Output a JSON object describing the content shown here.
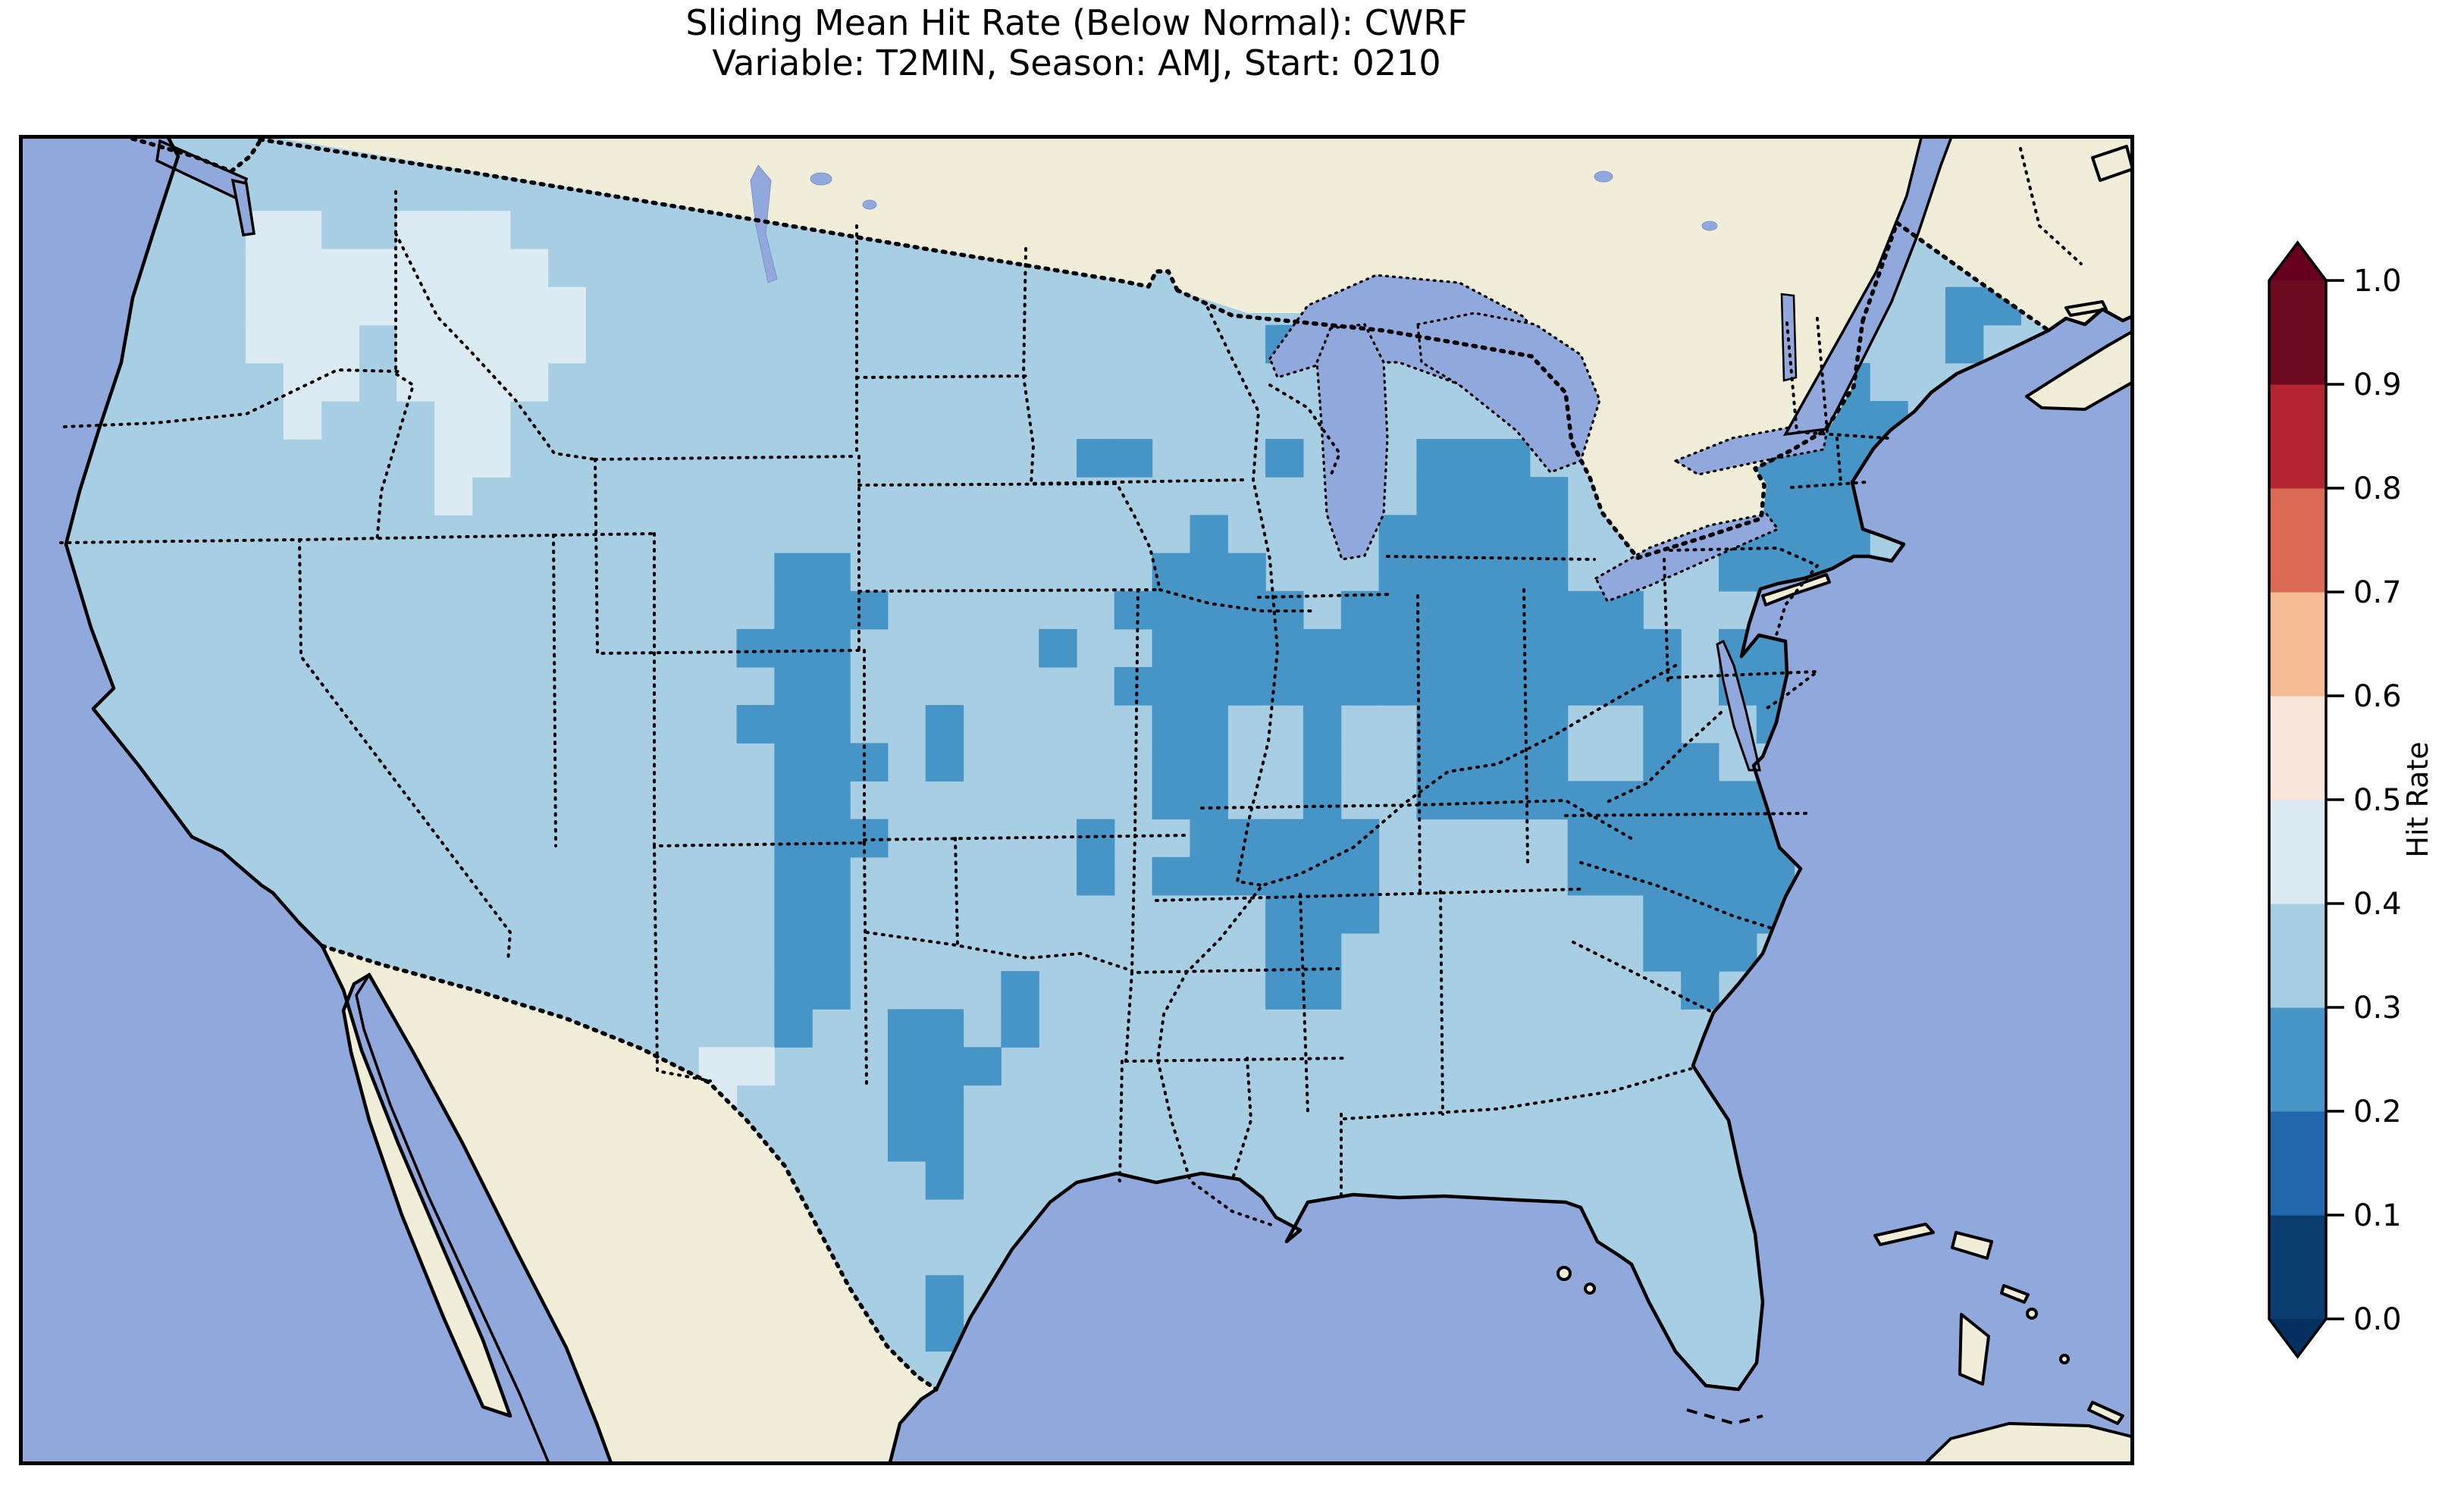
{
  "title": {
    "line1": "Sliding Mean Hit Rate (Below Normal): CWRF",
    "line2": "Variable: T2MIN, Season: AMJ, Start: 0210"
  },
  "chart_data": {
    "type": "heatmap",
    "subtype": "geographic-choropleth (gridded forecast verification map, CONUS)",
    "title": "Sliding Mean Hit Rate (Below Normal): CWRF",
    "subtitle": "Variable: T2MIN, Season: AMJ, Start: 0210",
    "model": "CWRF",
    "variable": "T2MIN",
    "season": "AMJ",
    "start": "0210",
    "metric": "Hit Rate (Below Normal)",
    "legend_position": "right",
    "colorbar": {
      "label": "Hit Rate",
      "orientation": "vertical",
      "extend": "both",
      "levels": [
        0.0,
        0.1,
        0.2,
        0.3,
        0.4,
        0.5,
        0.6,
        0.7,
        0.8,
        0.9,
        1.0
      ],
      "tick_labels": [
        "0.0",
        "0.1",
        "0.2",
        "0.3",
        "0.4",
        "0.5",
        "0.6",
        "0.7",
        "0.8",
        "0.9",
        "1.0"
      ],
      "segment_colors_low_to_high": [
        "#0b3d70",
        "#2267ac",
        "#4695c6",
        "#a8cee4",
        "#dcebf3",
        "#f9e5d9",
        "#f6bc95",
        "#da6a53",
        "#b42431",
        "#6e0a20"
      ],
      "extend_low_color": "#053061",
      "extend_high_color": "#67001f"
    },
    "map_colors": {
      "ocean_and_lakes": "#90a8dc",
      "non_us_land": "#f0eed9",
      "coastline": "#000000",
      "state_borders": "#000000 dotted",
      "national_borders": "#000000 dashed-dotted"
    },
    "field_summary": {
      "dominant_bin": "0.3-0.4 (light blue) over most of the CONUS",
      "bin_0.2_0.3": "Ohio Valley / lower Michigan / Kentucky, upstate New York and interior New England, southern Virginia to coastal North Carolina band, Iowa-Missouri, Colorado-Kansas border into northern New Mexico, central-west Texas, Tennessee-Alabama lobe, small cells in Minnesota, Nebraska, Oklahoma and Maine-New Brunswick border",
      "bin_0.4_0.5": "eastern Washington, central Idaho / western Montana, far-west Texas near Big Bend, a few coastal Maine cells",
      "outside_us": "masked cream land (Canada, Mexico, Bahamas, Cuba); ocean and Great Lakes periwinkle"
    },
    "grid": {
      "cols": 56,
      "rows": 35,
      "cells_bin_0.2_0.3": [
        [
          46,
          5
        ],
        [
          47,
          5
        ],
        [
          45,
          6
        ],
        [
          46,
          6
        ],
        [
          47,
          6
        ],
        [
          48,
          6
        ],
        [
          45,
          7
        ],
        [
          46,
          7
        ],
        [
          47,
          7
        ],
        [
          48,
          7
        ],
        [
          49,
          7
        ],
        [
          45,
          8
        ],
        [
          46,
          8
        ],
        [
          47,
          8
        ],
        [
          48,
          8
        ],
        [
          49,
          8
        ],
        [
          45,
          9
        ],
        [
          46,
          9
        ],
        [
          47,
          9
        ],
        [
          48,
          9
        ],
        [
          45,
          10
        ],
        [
          46,
          10
        ],
        [
          47,
          10
        ],
        [
          48,
          10
        ],
        [
          45,
          11
        ],
        [
          46,
          11
        ],
        [
          47,
          11
        ],
        [
          48,
          11
        ],
        [
          46,
          12
        ],
        [
          47,
          12
        ],
        [
          48,
          12
        ],
        [
          45,
          13
        ],
        [
          46,
          13
        ],
        [
          47,
          13
        ],
        [
          45,
          14
        ],
        [
          46,
          14
        ],
        [
          47,
          14
        ],
        [
          46,
          15
        ],
        [
          51,
          4
        ],
        [
          52,
          4
        ],
        [
          51,
          5
        ],
        [
          33,
          5
        ],
        [
          28,
          8
        ],
        [
          29,
          8
        ],
        [
          33,
          8
        ],
        [
          37,
          8
        ],
        [
          38,
          8
        ],
        [
          39,
          8
        ],
        [
          37,
          9
        ],
        [
          38,
          9
        ],
        [
          39,
          9
        ],
        [
          40,
          9
        ],
        [
          36,
          10
        ],
        [
          37,
          10
        ],
        [
          38,
          10
        ],
        [
          39,
          10
        ],
        [
          40,
          10
        ],
        [
          36,
          11
        ],
        [
          37,
          11
        ],
        [
          38,
          11
        ],
        [
          39,
          11
        ],
        [
          40,
          11
        ],
        [
          35,
          12
        ],
        [
          36,
          12
        ],
        [
          37,
          12
        ],
        [
          38,
          12
        ],
        [
          39,
          12
        ],
        [
          40,
          12
        ],
        [
          41,
          12
        ],
        [
          42,
          12
        ],
        [
          34,
          13
        ],
        [
          35,
          13
        ],
        [
          36,
          13
        ],
        [
          37,
          13
        ],
        [
          38,
          13
        ],
        [
          39,
          13
        ],
        [
          40,
          13
        ],
        [
          41,
          13
        ],
        [
          42,
          13
        ],
        [
          43,
          13
        ],
        [
          34,
          14
        ],
        [
          35,
          14
        ],
        [
          36,
          14
        ],
        [
          37,
          14
        ],
        [
          38,
          14
        ],
        [
          39,
          14
        ],
        [
          40,
          14
        ],
        [
          41,
          14
        ],
        [
          42,
          14
        ],
        [
          43,
          14
        ],
        [
          34,
          15
        ],
        [
          37,
          15
        ],
        [
          38,
          15
        ],
        [
          39,
          15
        ],
        [
          40,
          15
        ],
        [
          43,
          15
        ],
        [
          34,
          16
        ],
        [
          37,
          16
        ],
        [
          38,
          16
        ],
        [
          39,
          16
        ],
        [
          40,
          16
        ],
        [
          43,
          16
        ],
        [
          44,
          16
        ],
        [
          34,
          17
        ],
        [
          37,
          17
        ],
        [
          38,
          17
        ],
        [
          39,
          17
        ],
        [
          40,
          17
        ],
        [
          41,
          17
        ],
        [
          42,
          17
        ],
        [
          43,
          17
        ],
        [
          44,
          17
        ],
        [
          45,
          17
        ],
        [
          46,
          17
        ],
        [
          47,
          17
        ],
        [
          31,
          18
        ],
        [
          32,
          18
        ],
        [
          33,
          18
        ],
        [
          34,
          18
        ],
        [
          35,
          18
        ],
        [
          41,
          18
        ],
        [
          42,
          18
        ],
        [
          43,
          18
        ],
        [
          44,
          18
        ],
        [
          45,
          18
        ],
        [
          46,
          18
        ],
        [
          47,
          18
        ],
        [
          30,
          19
        ],
        [
          31,
          19
        ],
        [
          32,
          19
        ],
        [
          33,
          19
        ],
        [
          34,
          19
        ],
        [
          35,
          19
        ],
        [
          41,
          19
        ],
        [
          42,
          19
        ],
        [
          43,
          19
        ],
        [
          44,
          19
        ],
        [
          45,
          19
        ],
        [
          46,
          19
        ],
        [
          33,
          20
        ],
        [
          34,
          20
        ],
        [
          35,
          20
        ],
        [
          43,
          20
        ],
        [
          44,
          20
        ],
        [
          45,
          20
        ],
        [
          46,
          20
        ],
        [
          33,
          21
        ],
        [
          34,
          21
        ],
        [
          43,
          21
        ],
        [
          44,
          21
        ],
        [
          45,
          21
        ],
        [
          33,
          22
        ],
        [
          34,
          22
        ],
        [
          44,
          22
        ],
        [
          31,
          10
        ],
        [
          30,
          11
        ],
        [
          31,
          11
        ],
        [
          32,
          11
        ],
        [
          29,
          12
        ],
        [
          30,
          12
        ],
        [
          31,
          12
        ],
        [
          32,
          12
        ],
        [
          33,
          12
        ],
        [
          30,
          13
        ],
        [
          31,
          13
        ],
        [
          32,
          13
        ],
        [
          33,
          13
        ],
        [
          27,
          13
        ],
        [
          29,
          14
        ],
        [
          30,
          14
        ],
        [
          31,
          14
        ],
        [
          32,
          14
        ],
        [
          33,
          14
        ],
        [
          30,
          15
        ],
        [
          31,
          15
        ],
        [
          30,
          16
        ],
        [
          31,
          16
        ],
        [
          30,
          17
        ],
        [
          31,
          17
        ],
        [
          28,
          18
        ],
        [
          28,
          19
        ],
        [
          26,
          22
        ],
        [
          26,
          23
        ],
        [
          20,
          11
        ],
        [
          21,
          11
        ],
        [
          20,
          12
        ],
        [
          21,
          12
        ],
        [
          22,
          12
        ],
        [
          19,
          13
        ],
        [
          20,
          13
        ],
        [
          21,
          13
        ],
        [
          20,
          14
        ],
        [
          21,
          14
        ],
        [
          19,
          15
        ],
        [
          20,
          15
        ],
        [
          21,
          15
        ],
        [
          24,
          15
        ],
        [
          24,
          16
        ],
        [
          20,
          16
        ],
        [
          21,
          16
        ],
        [
          22,
          16
        ],
        [
          20,
          17
        ],
        [
          21,
          17
        ],
        [
          20,
          18
        ],
        [
          21,
          18
        ],
        [
          22,
          18
        ],
        [
          20,
          19
        ],
        [
          21,
          19
        ],
        [
          20,
          20
        ],
        [
          21,
          20
        ],
        [
          20,
          21
        ],
        [
          21,
          21
        ],
        [
          20,
          22
        ],
        [
          21,
          22
        ],
        [
          20,
          23
        ],
        [
          23,
          23
        ],
        [
          24,
          23
        ],
        [
          23,
          24
        ],
        [
          24,
          24
        ],
        [
          25,
          24
        ],
        [
          23,
          25
        ],
        [
          24,
          25
        ],
        [
          23,
          26
        ],
        [
          24,
          26
        ],
        [
          24,
          27
        ],
        [
          24,
          30
        ],
        [
          24,
          31
        ]
      ],
      "cells_bin_0.4_0.5": [
        [
          6,
          2
        ],
        [
          7,
          2
        ],
        [
          6,
          3
        ],
        [
          7,
          3
        ],
        [
          8,
          3
        ],
        [
          6,
          4
        ],
        [
          7,
          4
        ],
        [
          8,
          4
        ],
        [
          6,
          5
        ],
        [
          7,
          5
        ],
        [
          8,
          5
        ],
        [
          7,
          6
        ],
        [
          8,
          6
        ],
        [
          7,
          7
        ],
        [
          10,
          2
        ],
        [
          11,
          2
        ],
        [
          12,
          2
        ],
        [
          9,
          3
        ],
        [
          10,
          3
        ],
        [
          11,
          3
        ],
        [
          12,
          3
        ],
        [
          13,
          3
        ],
        [
          9,
          4
        ],
        [
          10,
          4
        ],
        [
          11,
          4
        ],
        [
          12,
          4
        ],
        [
          13,
          4
        ],
        [
          14,
          4
        ],
        [
          10,
          5
        ],
        [
          11,
          5
        ],
        [
          12,
          5
        ],
        [
          13,
          5
        ],
        [
          14,
          5
        ],
        [
          10,
          6
        ],
        [
          11,
          6
        ],
        [
          12,
          6
        ],
        [
          13,
          6
        ],
        [
          11,
          7
        ],
        [
          12,
          7
        ],
        [
          11,
          8
        ],
        [
          12,
          8
        ],
        [
          11,
          9
        ],
        [
          18,
          24
        ],
        [
          19,
          24
        ],
        [
          18,
          25
        ],
        [
          51,
          7
        ],
        [
          51,
          8
        ]
      ]
    }
  }
}
